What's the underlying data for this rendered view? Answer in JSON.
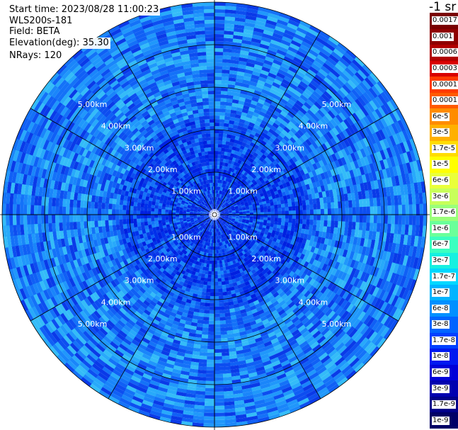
{
  "info": {
    "start_time": "Start time: 2023/08/28 11:00:23",
    "instrument": "WLS200s-181",
    "field": "Field: BETA",
    "elevation": "Elevation(deg): 35.30",
    "nrays": "NRays: 120"
  },
  "colorbar": {
    "unit": "-1 sr",
    "labels": [
      "0.0017",
      "0.001",
      "0.0006",
      "0.0003",
      "0.00017",
      "0.0001",
      "6e-5",
      "3e-5",
      "1.7e-5",
      "1e-5",
      "6e-6",
      "3e-6",
      "1.7e-6",
      "1e-6",
      "6e-7",
      "3e-7",
      "1.7e-7",
      "1e-7",
      "6e-8",
      "3e-8",
      "1.7e-8",
      "1e-8",
      "6e-9",
      "3e-9",
      "1.7e-9",
      "1e-9"
    ],
    "colors": [
      "#7a0000",
      "#8f0000",
      "#b00000",
      "#d80000",
      "#ff3a00",
      "#ff5a00",
      "#ff8c00",
      "#ffb000",
      "#ffdc00",
      "#ffff00",
      "#eaff3a",
      "#c8ff5a",
      "#9aff7a",
      "#6aff9a",
      "#3affc0",
      "#16f0e0",
      "#00d8ff",
      "#00b4ff",
      "#0090ff",
      "#0064ff",
      "#0040ff",
      "#0018f0",
      "#0000d8",
      "#0000b0",
      "#00008a",
      "#000066"
    ]
  },
  "chart_data": {
    "type": "heatmap",
    "projection": "polar (PPI scan)",
    "range_rings_km": [
      1,
      2,
      3,
      4,
      5
    ],
    "ring_labels": [
      "1.00km",
      "2.00km",
      "3.00km",
      "4.00km",
      "5.00km"
    ],
    "max_range_km": 5.0,
    "radials_deg": [
      0,
      30,
      60,
      90,
      120,
      150,
      180,
      210,
      240,
      270,
      300,
      330
    ],
    "field": "BETA",
    "elevation_deg": 35.3,
    "nrays": 120,
    "color_scale": "log",
    "typical_value_range": [
      "1.7e-9",
      "1e-7"
    ]
  }
}
